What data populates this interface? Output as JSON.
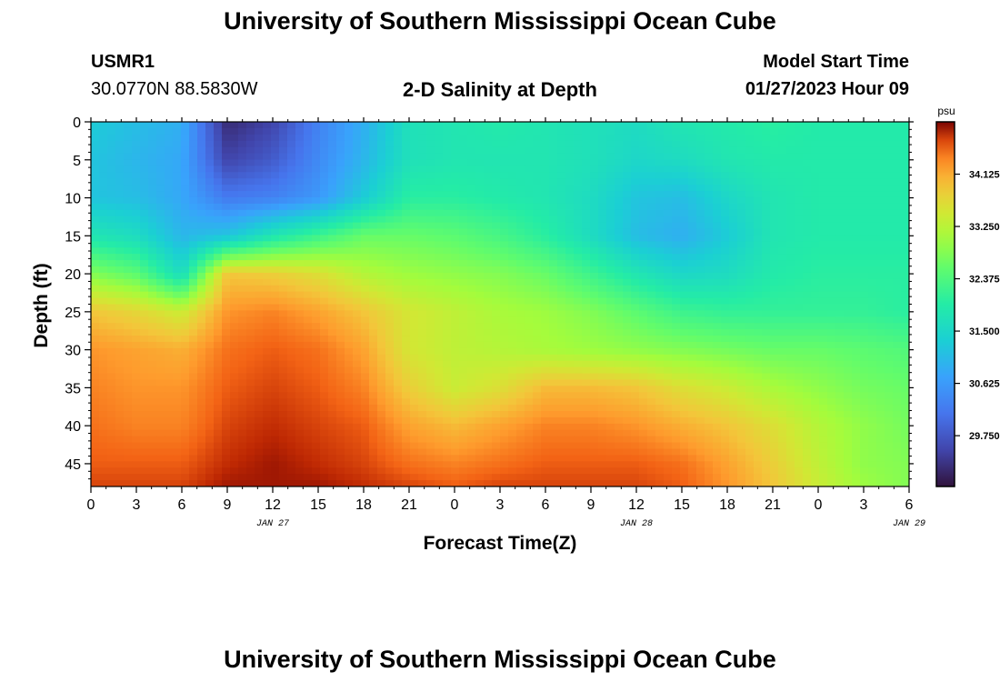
{
  "header": {
    "title": "University of Southern Mississippi Ocean Cube",
    "station_id": "USMR1",
    "coordinates": "30.0770N  88.5830W",
    "plot_title": "2-D Salinity at Depth",
    "model_start_label": "Model Start Time",
    "model_start_value": "01/27/2023 Hour 09"
  },
  "footer": {
    "title": "University of Southern Mississippi Ocean Cube"
  },
  "chart_data": {
    "type": "heatmap",
    "title": "2-D Salinity at Depth",
    "xlabel": "Forecast Time(Z)",
    "ylabel": "Depth (ft)",
    "colorbar_unit": "psu",
    "x_tick_labels": [
      "0",
      "3",
      "6",
      "9",
      "12",
      "15",
      "18",
      "21",
      "0",
      "3",
      "6",
      "9",
      "12",
      "15",
      "18",
      "21",
      "0",
      "3",
      "6"
    ],
    "y_tick_labels": [
      "0",
      "5",
      "10",
      "15",
      "20",
      "25",
      "30",
      "35",
      "40",
      "45"
    ],
    "date_labels": [
      {
        "label": "JAN 27",
        "x_hours": 12
      },
      {
        "label": "JAN 28",
        "x_hours": 36
      },
      {
        "label": "JAN 29",
        "x_hours": 54
      }
    ],
    "x_range_hours": [
      0,
      54
    ],
    "y_range_ft": [
      0,
      48
    ],
    "y_inverted": true,
    "colorbar_ticks": [
      "34.125",
      "33.250",
      "32.375",
      "31.500",
      "30.625",
      "29.750"
    ],
    "colorbar_range": [
      28.9,
      35.0
    ],
    "colormap": "turbo",
    "colors": {
      "low": "#30123b",
      "mid": "#1ae4b6",
      "high": "#7a0403"
    },
    "salinity_grid": {
      "x_hours": [
        0,
        3,
        6,
        9,
        12,
        15,
        18,
        21,
        24,
        27,
        30,
        33,
        36,
        39,
        42,
        45,
        48,
        51,
        54
      ],
      "depth_ft": [
        0,
        5,
        10,
        15,
        20,
        25,
        30,
        35,
        40,
        45,
        48
      ],
      "values": [
        [
          31.3,
          31.1,
          30.9,
          29.2,
          29.5,
          30.3,
          30.9,
          31.7,
          31.8,
          31.9,
          31.8,
          31.7,
          31.6,
          31.8,
          31.9,
          32.0,
          31.9,
          31.9,
          31.9
        ],
        [
          31.2,
          31.0,
          30.8,
          29.5,
          29.8,
          30.4,
          31.0,
          31.7,
          31.8,
          31.8,
          31.8,
          31.7,
          31.5,
          31.6,
          31.8,
          31.9,
          31.9,
          31.9,
          31.9
        ],
        [
          31.2,
          31.1,
          30.8,
          30.2,
          30.3,
          30.6,
          31.3,
          32.0,
          32.0,
          31.9,
          31.8,
          31.6,
          31.2,
          31.1,
          31.5,
          31.8,
          31.9,
          31.9,
          31.9
        ],
        [
          31.8,
          31.6,
          31.0,
          31.2,
          31.8,
          32.2,
          32.6,
          32.6,
          32.5,
          32.3,
          32.0,
          31.6,
          31.1,
          30.9,
          31.3,
          31.8,
          31.9,
          31.9,
          31.9
        ],
        [
          32.8,
          32.5,
          31.6,
          33.9,
          33.8,
          33.6,
          33.2,
          33.0,
          32.9,
          32.8,
          32.6,
          32.2,
          31.8,
          31.5,
          31.6,
          31.9,
          32.0,
          32.0,
          32.0
        ],
        [
          33.9,
          33.7,
          33.4,
          34.3,
          34.4,
          34.2,
          33.9,
          33.5,
          33.3,
          33.1,
          33.0,
          32.8,
          32.5,
          32.2,
          32.1,
          32.1,
          32.1,
          32.1,
          32.0
        ],
        [
          34.3,
          34.2,
          34.1,
          34.5,
          34.6,
          34.5,
          34.2,
          33.5,
          33.3,
          33.2,
          33.1,
          33.0,
          32.9,
          32.8,
          32.7,
          32.6,
          32.6,
          32.5,
          32.4
        ],
        [
          34.4,
          34.3,
          34.3,
          34.6,
          34.7,
          34.6,
          34.4,
          33.8,
          33.4,
          33.6,
          34.0,
          34.0,
          33.9,
          33.6,
          33.4,
          33.1,
          32.9,
          32.7,
          32.6
        ],
        [
          34.5,
          34.4,
          34.4,
          34.7,
          34.8,
          34.7,
          34.6,
          34.2,
          34.0,
          34.2,
          34.4,
          34.4,
          34.3,
          34.1,
          33.9,
          33.6,
          33.2,
          32.9,
          32.7
        ],
        [
          34.6,
          34.6,
          34.6,
          34.8,
          34.9,
          34.8,
          34.7,
          34.5,
          34.4,
          34.5,
          34.6,
          34.6,
          34.6,
          34.5,
          34.2,
          33.8,
          33.3,
          32.9,
          32.8
        ],
        [
          34.7,
          34.7,
          34.7,
          34.9,
          34.9,
          34.9,
          34.8,
          34.7,
          34.6,
          34.7,
          34.7,
          34.7,
          34.7,
          34.6,
          34.3,
          33.9,
          33.4,
          33.0,
          32.8
        ]
      ]
    }
  }
}
